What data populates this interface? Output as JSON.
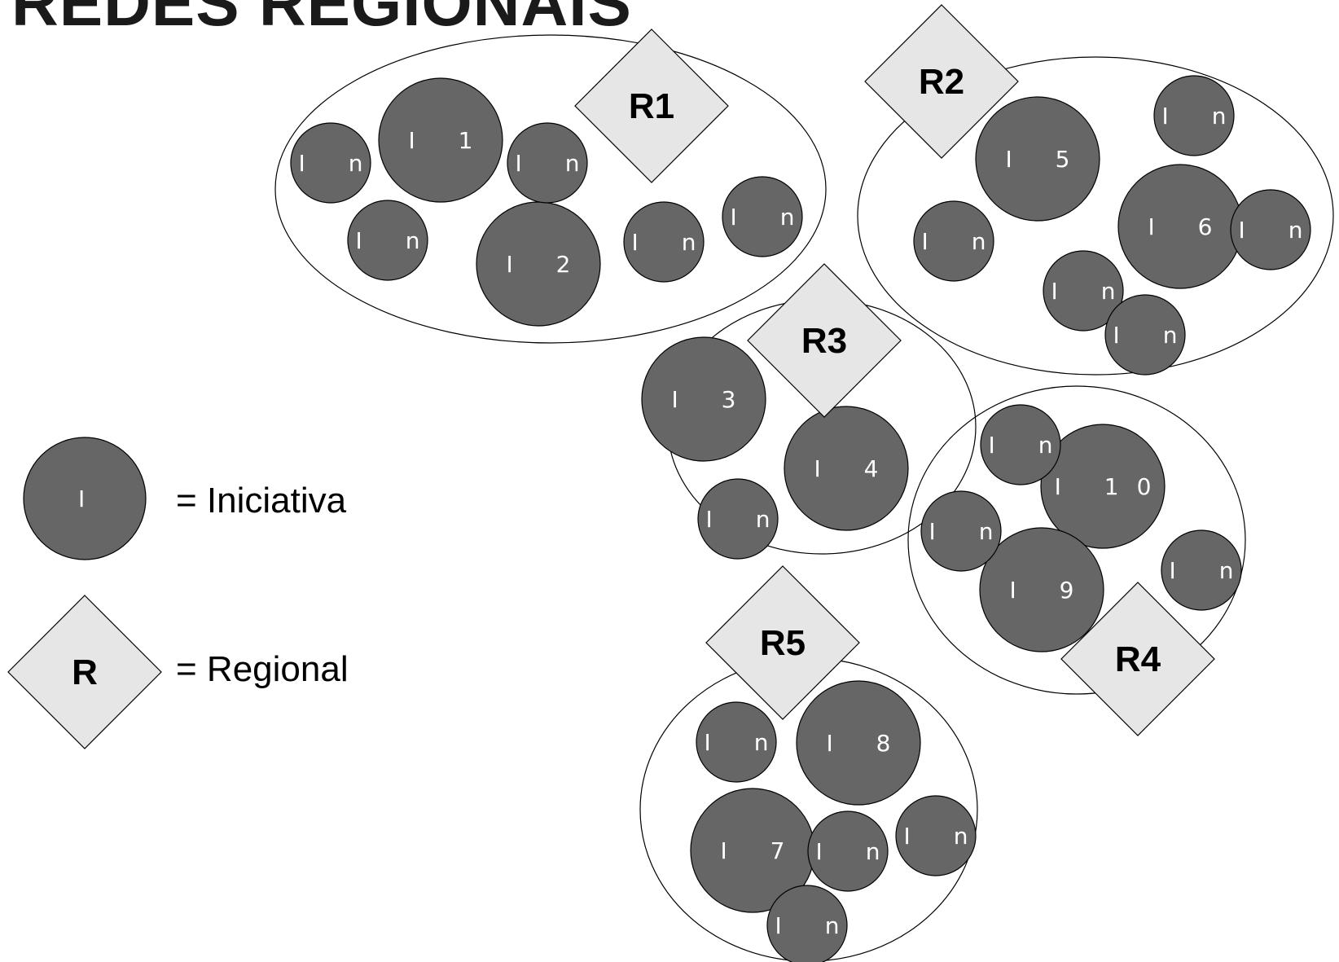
{
  "title": "REDES REGIONAIS",
  "colors": {
    "iniciativa": "#666666",
    "regional": "#e6e6e6",
    "outline": "#000000",
    "iniciativa_text": "#ffffff"
  },
  "legend": {
    "iniciativa_symbol": "I",
    "iniciativa_label": "= Iniciativa",
    "regional_symbol": "R",
    "regional_label": "= Regional"
  },
  "regions": [
    {
      "hub": "R1",
      "initiatives": [
        "I 1",
        "I 2",
        "I n",
        "I n",
        "I n",
        "I n",
        "I n"
      ]
    },
    {
      "hub": "R2",
      "initiatives": [
        "I 5",
        "I 6",
        "I n",
        "I n",
        "I n",
        "I n",
        "I n"
      ]
    },
    {
      "hub": "R3",
      "initiatives": [
        "I 3",
        "I 4",
        "I n"
      ]
    },
    {
      "hub": "R4",
      "initiatives": [
        "I 10",
        "I 9",
        "I n",
        "I n",
        "I n"
      ]
    },
    {
      "hub": "R5",
      "initiatives": [
        "I 8",
        "I 7",
        "I n",
        "I n",
        "I n",
        "I n"
      ]
    }
  ]
}
